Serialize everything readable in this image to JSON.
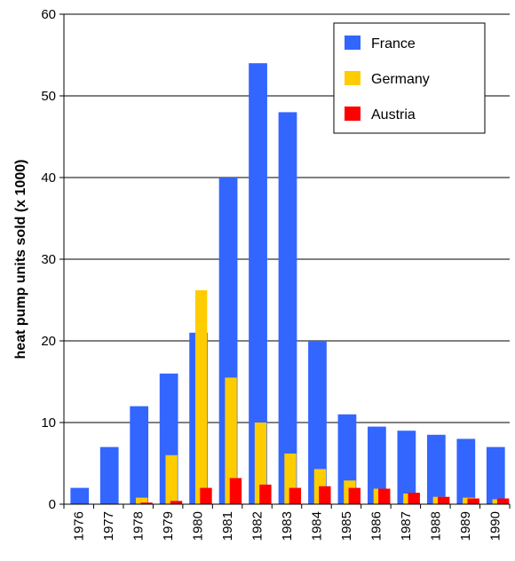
{
  "chart_data": {
    "type": "bar",
    "title": "",
    "xlabel": "",
    "ylabel": "heat pump units sold (x 1000)",
    "ylim": [
      0,
      60
    ],
    "yticks": [
      0,
      10,
      20,
      30,
      40,
      50,
      60
    ],
    "grid": true,
    "legend_position": "top-right",
    "categories": [
      "1976",
      "1977",
      "1978",
      "1979",
      "1980",
      "1981",
      "1982",
      "1983",
      "1984",
      "1985",
      "1986",
      "1987",
      "1988",
      "1989",
      "1990"
    ],
    "series": [
      {
        "name": "France",
        "color": "#3366FF",
        "values": [
          2,
          7,
          12,
          16,
          21,
          40,
          54,
          48,
          20,
          11,
          9.5,
          9,
          8.5,
          8,
          7
        ]
      },
      {
        "name": "Germany",
        "color": "#FFCC00",
        "values": [
          0,
          0,
          0.8,
          6,
          26.2,
          15.5,
          10,
          6.2,
          4.3,
          2.9,
          1.9,
          1.3,
          0.9,
          0.8,
          0.6
        ]
      },
      {
        "name": "Austria",
        "color": "#FF0000",
        "values": [
          0,
          0,
          0.2,
          0.4,
          2,
          3.2,
          2.4,
          2,
          2.2,
          2,
          1.9,
          1.4,
          0.9,
          0.7,
          0.7
        ]
      }
    ]
  }
}
